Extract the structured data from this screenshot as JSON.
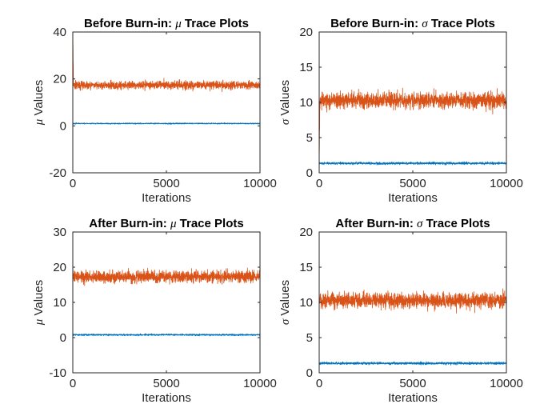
{
  "figure": {
    "background": "#ffffff"
  },
  "chart_data": [
    {
      "type": "line",
      "title_prefix": "Before Burn-in: ",
      "title_symbol": "μ",
      "title_suffix": " Trace Plots",
      "xlabel": "Iterations",
      "ylabel_symbol": "μ",
      "ylabel_text": " Values",
      "xlim": [
        0,
        10000
      ],
      "ylim": [
        -20,
        40
      ],
      "xticks": [
        "0",
        "5000",
        "10000"
      ],
      "xtick_values": [
        0,
        5000,
        10000
      ],
      "yticks": [
        "-20",
        "0",
        "20",
        "40"
      ],
      "ytick_values": [
        -20,
        0,
        20,
        40
      ],
      "burn_in_shown": true,
      "series": [
        {
          "color": "#0072BD",
          "mean": 1.0,
          "spread": 0.35,
          "start": 1.0
        },
        {
          "color": "#D95319",
          "mean": 17.3,
          "spread": 2.6,
          "start": 40
        }
      ]
    },
    {
      "type": "line",
      "title_prefix": "Before Burn-in: ",
      "title_symbol": "σ",
      "title_suffix": " Trace Plots",
      "xlabel": "Iterations",
      "ylabel_symbol": "σ",
      "ylabel_text": " Values",
      "xlim": [
        0,
        10000
      ],
      "ylim": [
        0,
        20
      ],
      "xticks": [
        "0",
        "5000",
        "10000"
      ],
      "xtick_values": [
        0,
        5000,
        10000
      ],
      "yticks": [
        "0",
        "5",
        "10",
        "15",
        "20"
      ],
      "ytick_values": [
        0,
        5,
        10,
        15,
        20
      ],
      "burn_in_shown": true,
      "series": [
        {
          "color": "#0072BD",
          "mean": 1.35,
          "spread": 0.25,
          "start": 1.3
        },
        {
          "color": "#D95319",
          "mean": 10.3,
          "spread": 1.7,
          "start": 1.0
        }
      ]
    },
    {
      "type": "line",
      "title_prefix": "After Burn-in: ",
      "title_symbol": "μ",
      "title_suffix": " Trace Plots",
      "xlabel": "Iterations",
      "ylabel_symbol": "μ",
      "ylabel_text": " Values",
      "xlim": [
        0,
        10000
      ],
      "ylim": [
        -10,
        30
      ],
      "xticks": [
        "0",
        "5000",
        "10000"
      ],
      "xtick_values": [
        0,
        5000,
        10000
      ],
      "yticks": [
        "-10",
        "0",
        "10",
        "20",
        "30"
      ],
      "ytick_values": [
        -10,
        0,
        10,
        20,
        30
      ],
      "burn_in_shown": false,
      "series": [
        {
          "color": "#0072BD",
          "mean": 0.8,
          "spread": 0.35,
          "start": 0.8
        },
        {
          "color": "#D95319",
          "mean": 17.3,
          "spread": 2.6,
          "start": 17.3
        }
      ]
    },
    {
      "type": "line",
      "title_prefix": "After Burn-in: ",
      "title_symbol": "σ",
      "title_suffix": " Trace Plots",
      "xlabel": "Iterations",
      "ylabel_symbol": "σ",
      "ylabel_text": " Values",
      "xlim": [
        0,
        10000
      ],
      "ylim": [
        0,
        20
      ],
      "xticks": [
        "0",
        "5000",
        "10000"
      ],
      "xtick_values": [
        0,
        5000,
        10000
      ],
      "yticks": [
        "0",
        "5",
        "10",
        "15",
        "20"
      ],
      "ytick_values": [
        0,
        5,
        10,
        15,
        20
      ],
      "burn_in_shown": false,
      "series": [
        {
          "color": "#0072BD",
          "mean": 1.35,
          "spread": 0.25,
          "start": 1.35
        },
        {
          "color": "#D95319",
          "mean": 10.3,
          "spread": 1.7,
          "start": 10.3
        }
      ]
    }
  ]
}
